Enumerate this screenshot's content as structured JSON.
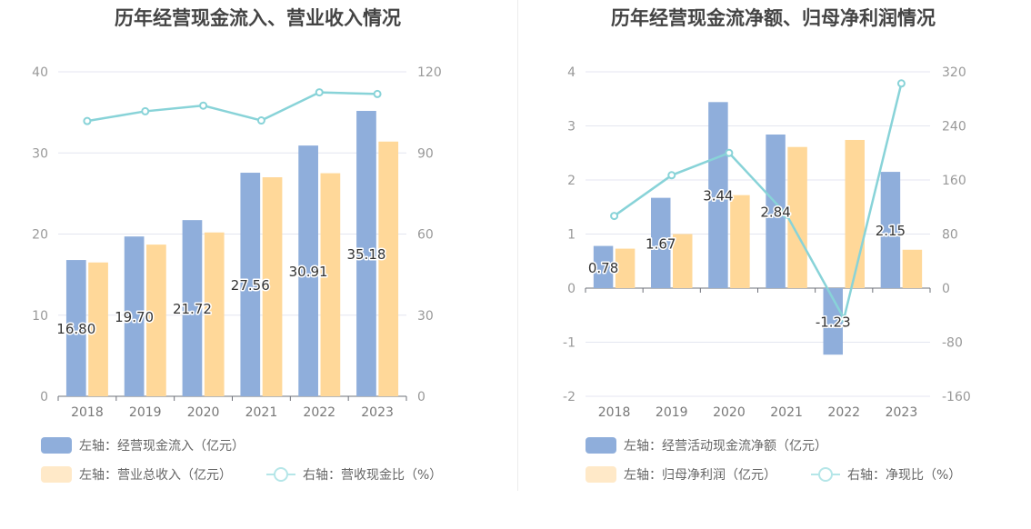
{
  "colors": {
    "left_bar": "#8faedb",
    "right_bar": "#ffd899",
    "line": "#88d3d8",
    "legend_right_bar": "#ffe9c8",
    "legend_line": "#b5e6e8"
  },
  "legend_icons": [
    "bar-swatch",
    "bar-swatch",
    "line-circle-swatch"
  ],
  "chart_data": [
    {
      "type": "bar",
      "title": "历年经营现金流入、营业收入情况",
      "categories": [
        "2018",
        "2019",
        "2020",
        "2021",
        "2022",
        "2023"
      ],
      "series": [
        {
          "name": "左轴：经营现金流入（亿元）",
          "axis": "left",
          "type": "bar",
          "values": [
            16.8,
            19.7,
            21.72,
            27.56,
            30.91,
            35.18
          ],
          "labels": [
            "16.80",
            "19.70",
            "21.72",
            "27.56",
            "30.91",
            "35.18"
          ]
        },
        {
          "name": "左轴：营业总收入（亿元）",
          "axis": "left",
          "type": "bar",
          "values": [
            16.5,
            18.7,
            20.2,
            27.0,
            27.5,
            31.4
          ]
        },
        {
          "name": "右轴：营收现金比（%）",
          "axis": "right",
          "type": "line",
          "values": [
            101.8,
            105.4,
            107.5,
            102.0,
            112.4,
            111.8
          ]
        }
      ],
      "left_axis": {
        "min": 0,
        "max": 40,
        "ticks": [
          "0",
          "10",
          "20",
          "30",
          "40"
        ]
      },
      "right_axis": {
        "min": 0,
        "max": 120,
        "ticks": [
          "0",
          "30",
          "60",
          "90",
          "120"
        ]
      },
      "grid": true,
      "legend_position": "bottom-left"
    },
    {
      "type": "bar",
      "title": "历年经营现金流净额、归母净利润情况",
      "categories": [
        "2018",
        "2019",
        "2020",
        "2021",
        "2022",
        "2023"
      ],
      "series": [
        {
          "name": "左轴：经营活动现金流净额（亿元）",
          "axis": "left",
          "type": "bar",
          "values": [
            0.78,
            1.67,
            3.44,
            2.84,
            -1.23,
            2.15
          ],
          "labels": [
            "0.78",
            "1.67",
            "3.44",
            "2.84",
            "-1.23",
            "2.15"
          ]
        },
        {
          "name": "左轴：归母净利润（亿元）",
          "axis": "left",
          "type": "bar",
          "values": [
            0.73,
            1.0,
            1.72,
            2.61,
            2.74,
            0.71
          ]
        },
        {
          "name": "右轴：净现比（%）",
          "axis": "right",
          "type": "line",
          "values": [
            106.8,
            167.0,
            200.0,
            108.8,
            -44.9,
            302.8
          ]
        }
      ],
      "left_axis": {
        "min": -2,
        "max": 4,
        "ticks": [
          "-2",
          "-1",
          "0",
          "1",
          "2",
          "3",
          "4"
        ]
      },
      "right_axis": {
        "min": -160,
        "max": 320,
        "ticks": [
          "-160",
          "-80",
          "0",
          "80",
          "160",
          "240",
          "320"
        ]
      },
      "grid": true,
      "legend_position": "bottom-left"
    }
  ]
}
